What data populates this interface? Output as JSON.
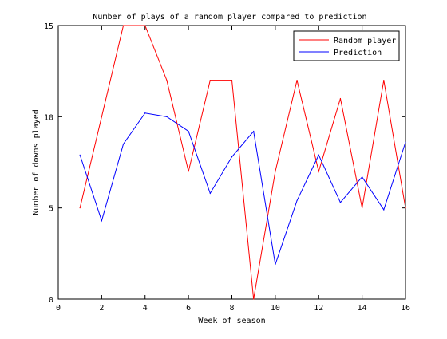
{
  "chart_data": {
    "type": "line",
    "title": "Number of plays of a random player compared to prediction",
    "xlabel": "Week of season",
    "ylabel": "Number of downs played",
    "xlim": [
      0,
      16
    ],
    "ylim": [
      0,
      15
    ],
    "xticks": [
      0,
      2,
      4,
      6,
      8,
      10,
      12,
      14,
      16
    ],
    "yticks": [
      0,
      5,
      10,
      15
    ],
    "grid": false,
    "legend_position": "top-right",
    "series": [
      {
        "name": "Random player",
        "color": "#ff0000",
        "x": [
          1,
          2,
          3,
          4,
          5,
          6,
          7,
          8,
          9,
          10,
          11,
          12,
          13,
          14,
          15,
          16
        ],
        "y": [
          5,
          10,
          15,
          15,
          12,
          7,
          12,
          12,
          0,
          7,
          12,
          7,
          11,
          5,
          12,
          5
        ]
      },
      {
        "name": "Prediction",
        "color": "#0000ff",
        "x": [
          1,
          2,
          3,
          4,
          5,
          6,
          7,
          8,
          9,
          10,
          11,
          12,
          13,
          14,
          15,
          16
        ],
        "y": [
          7.9,
          4.3,
          8.5,
          10.2,
          10.0,
          9.2,
          5.8,
          7.8,
          9.2,
          1.9,
          5.4,
          7.9,
          5.3,
          6.7,
          4.9,
          8.6
        ]
      }
    ]
  }
}
